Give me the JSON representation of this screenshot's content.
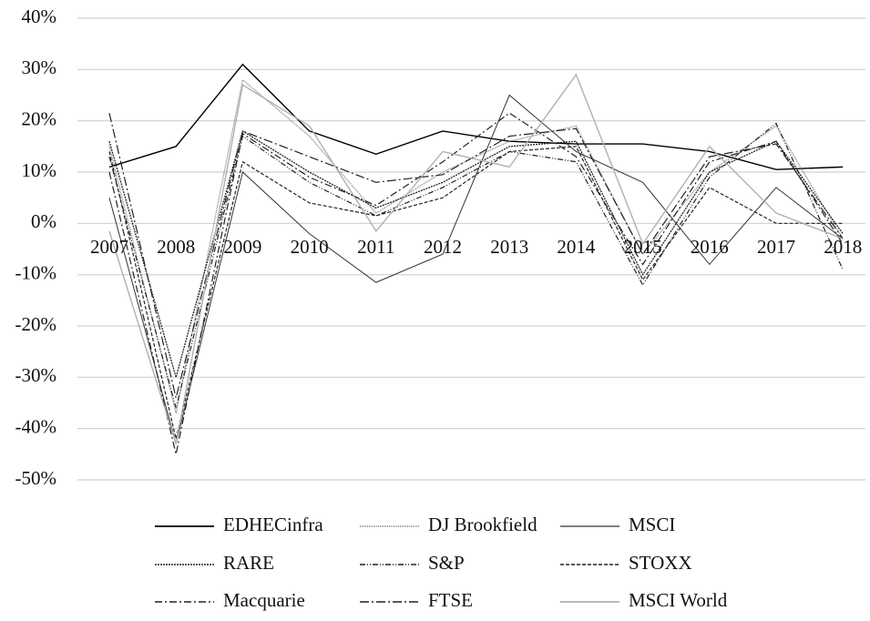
{
  "chart_data": {
    "type": "line",
    "categories": [
      "2007",
      "2008",
      "2009",
      "2010",
      "2011",
      "2012",
      "2013",
      "2014",
      "2015",
      "2016",
      "2017",
      "2018"
    ],
    "series": [
      {
        "name": "EDHECinfra",
        "color": "#000000",
        "width": 1.4,
        "dash": "none",
        "values": [
          11,
          15,
          31,
          18,
          13.5,
          18,
          16,
          15.5,
          15.5,
          14,
          10.5,
          11
        ]
      },
      {
        "name": "DJ Brookfield",
        "color": "#777777",
        "width": 1.2,
        "dash": "1 1",
        "values": [
          15,
          -37,
          28,
          17,
          2,
          10,
          16,
          19,
          -6,
          10,
          19,
          -3
        ]
      },
      {
        "name": "MSCI",
        "color": "#333333",
        "width": 1,
        "dash": "none",
        "values": [
          5,
          -43,
          10,
          -2,
          -11.5,
          -6,
          25,
          14,
          8,
          -8,
          7,
          -3
        ]
      },
      {
        "name": "RARE",
        "color": "#222222",
        "width": 1.3,
        "dash": "2 1",
        "values": [
          16,
          -30,
          18,
          10,
          3,
          8,
          15,
          16,
          -10,
          10,
          16,
          -2
        ]
      },
      {
        "name": "S&P",
        "color": "#222222",
        "width": 1.2,
        "dash": "6 2 1 2 1 2",
        "values": [
          13,
          -36,
          17,
          8,
          1.5,
          7,
          14,
          12,
          -12,
          9,
          19.5,
          -9
        ]
      },
      {
        "name": "STOXX",
        "color": "#222222",
        "width": 1.2,
        "dash": "4 2",
        "values": [
          14,
          -42,
          12,
          4,
          1.5,
          5,
          14,
          15,
          -11,
          7,
          0,
          0
        ]
      },
      {
        "name": "Macquarie",
        "color": "#222222",
        "width": 1.2,
        "dash": "8 3 2 3",
        "values": [
          10,
          -45,
          17.5,
          9,
          3.5,
          12,
          21.5,
          13,
          -8,
          12,
          16,
          -4
        ]
      },
      {
        "name": "FTSE",
        "color": "#222222",
        "width": 1.2,
        "dash": "10 3 2 3",
        "values": [
          21.5,
          -34,
          18,
          13,
          8,
          9.5,
          17,
          18.5,
          -6,
          13,
          15.5,
          -3
        ]
      },
      {
        "name": "MSCI World",
        "color": "#b0b0b0",
        "width": 1.4,
        "dash": "none",
        "values": [
          -1.5,
          -43,
          27,
          19,
          -1.5,
          14,
          11,
          29,
          -4,
          15,
          2,
          -3
        ]
      }
    ],
    "ylim": [
      -50,
      40
    ],
    "yticks": [
      {
        "value": -50,
        "label": "-50%"
      },
      {
        "value": -40,
        "label": "-40%"
      },
      {
        "value": -30,
        "label": "-30%"
      },
      {
        "value": -20,
        "label": "-20%"
      },
      {
        "value": -10,
        "label": "-10%"
      },
      {
        "value": 0,
        "label": "0%"
      },
      {
        "value": 10,
        "label": "10%"
      },
      {
        "value": 20,
        "label": "20%"
      },
      {
        "value": 30,
        "label": "30%"
      },
      {
        "value": 40,
        "label": "40%"
      }
    ],
    "grid": true
  }
}
